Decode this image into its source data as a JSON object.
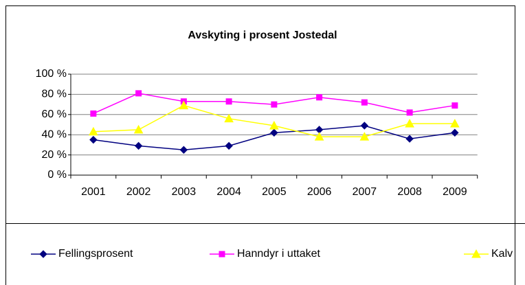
{
  "chart_data": {
    "type": "line",
    "title": "Avskyting i prosent Jostedal",
    "categories": [
      "2001",
      "2002",
      "2003",
      "2004",
      "2005",
      "2006",
      "2007",
      "2008",
      "2009"
    ],
    "series": [
      {
        "name": "Fellingsprosent",
        "color": "#000080",
        "marker": "diamond",
        "values": [
          35,
          29,
          25,
          29,
          42,
          45,
          49,
          36,
          42
        ]
      },
      {
        "name": "Hanndyr i uttaket",
        "color": "#ff00ff",
        "marker": "square",
        "values": [
          61,
          81,
          73,
          73,
          70,
          77,
          72,
          62,
          69
        ]
      },
      {
        "name": "Kalv og ungdyr",
        "color": "#ffff00",
        "marker": "triangle",
        "values": [
          43,
          45,
          69,
          56,
          49,
          38,
          38,
          51,
          51
        ]
      }
    ],
    "ylim": [
      0,
      100
    ],
    "yticks": [
      {
        "value": 0,
        "label": "0 %"
      },
      {
        "value": 20,
        "label": "20 %"
      },
      {
        "value": 40,
        "label": "40 %"
      },
      {
        "value": 60,
        "label": "60 %"
      },
      {
        "value": 80,
        "label": "80 %"
      },
      {
        "value": 100,
        "label": "100 %"
      }
    ],
    "grid": true,
    "legend": "bottom"
  }
}
